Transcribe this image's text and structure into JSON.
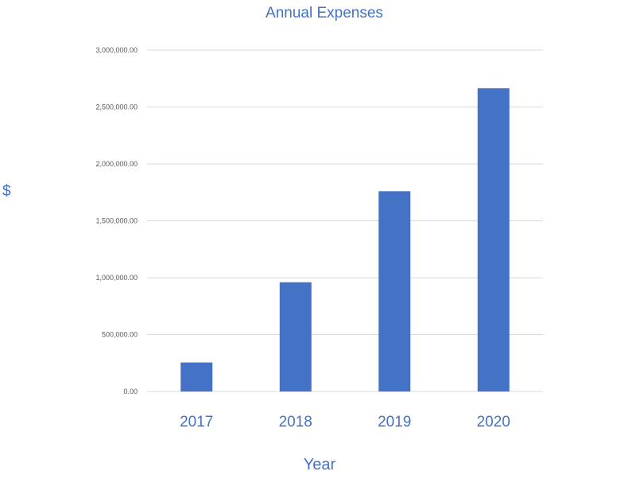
{
  "chart_data": {
    "type": "bar",
    "title": "Annual Expenses",
    "xlabel": "Year",
    "ylabel": "$",
    "categories": [
      "2017",
      "2018",
      "2019",
      "2020"
    ],
    "values": [
      255000,
      960000,
      1760000,
      2665000
    ],
    "ylim": [
      0,
      3000000
    ],
    "yticks": [
      0,
      500000,
      1000000,
      1500000,
      2000000,
      2500000,
      3000000
    ],
    "ytick_labels": [
      "0.00",
      "500,000.00",
      "1,000,000.00",
      "1,500,000.00",
      "2,000,000.00",
      "2,500,000.00",
      "3,000,000.00"
    ],
    "grid": true,
    "legend": "none",
    "colors": {
      "bar": "#4472c4",
      "text": "#4472c4",
      "tick_text": "#595959",
      "grid": "#d9d9d9"
    }
  }
}
